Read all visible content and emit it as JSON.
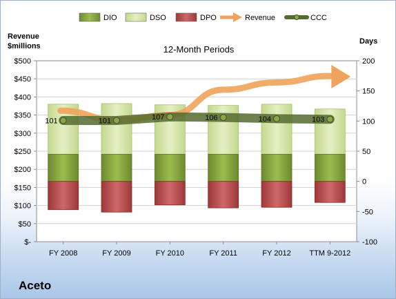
{
  "company": "Aceto",
  "chart_data": {
    "type": "bar",
    "title": "12-Month Periods",
    "ylabel_left": "Revenue $millions",
    "ylabel_right": "Days",
    "categories": [
      "FY 2008",
      "FY 2009",
      "FY 2010",
      "FY 2011",
      "FY 2012",
      "TTM 9-2012"
    ],
    "left_axis": {
      "min": 0,
      "max": 500,
      "step": 50,
      "ticks": [
        "$-",
        "$50",
        "$100",
        "$150",
        "$200",
        "$250",
        "$300",
        "$350",
        "$400",
        "$450",
        "$500"
      ]
    },
    "right_axis": {
      "min": -100,
      "max": 200,
      "step": 50,
      "ticks": [
        "-100",
        "-50",
        "0",
        "50",
        "100",
        "150",
        "200"
      ]
    },
    "legend": [
      "DIO",
      "DSO",
      "DPO",
      "Revenue",
      "CCC"
    ],
    "legend_position": "top",
    "series": [
      {
        "name": "DIO",
        "axis": "right",
        "values": [
          45,
          45,
          45,
          45,
          45,
          45
        ]
      },
      {
        "name": "DSO",
        "axis": "right",
        "values": [
          83,
          84,
          82,
          81,
          83,
          75
        ]
      },
      {
        "name": "DPO",
        "axis": "right",
        "values": [
          -47,
          -51,
          -39,
          -44,
          -43,
          -35
        ]
      },
      {
        "name": "Revenue",
        "axis": "left",
        "values": [
          362,
          335,
          350,
          420,
          440,
          458
        ]
      },
      {
        "name": "CCC",
        "axis": "right",
        "values": [
          101,
          101,
          107,
          106,
          104,
          103
        ],
        "labels": [
          "101",
          "101",
          "107",
          "106",
          "104",
          "103"
        ]
      }
    ],
    "colors": {
      "DIO": "#7f9e3a",
      "DSO": "#cfe0a0",
      "DPO": "#b84a4a",
      "Revenue": "#f0a35a",
      "CCC": "#556b2f"
    },
    "grid": true
  }
}
